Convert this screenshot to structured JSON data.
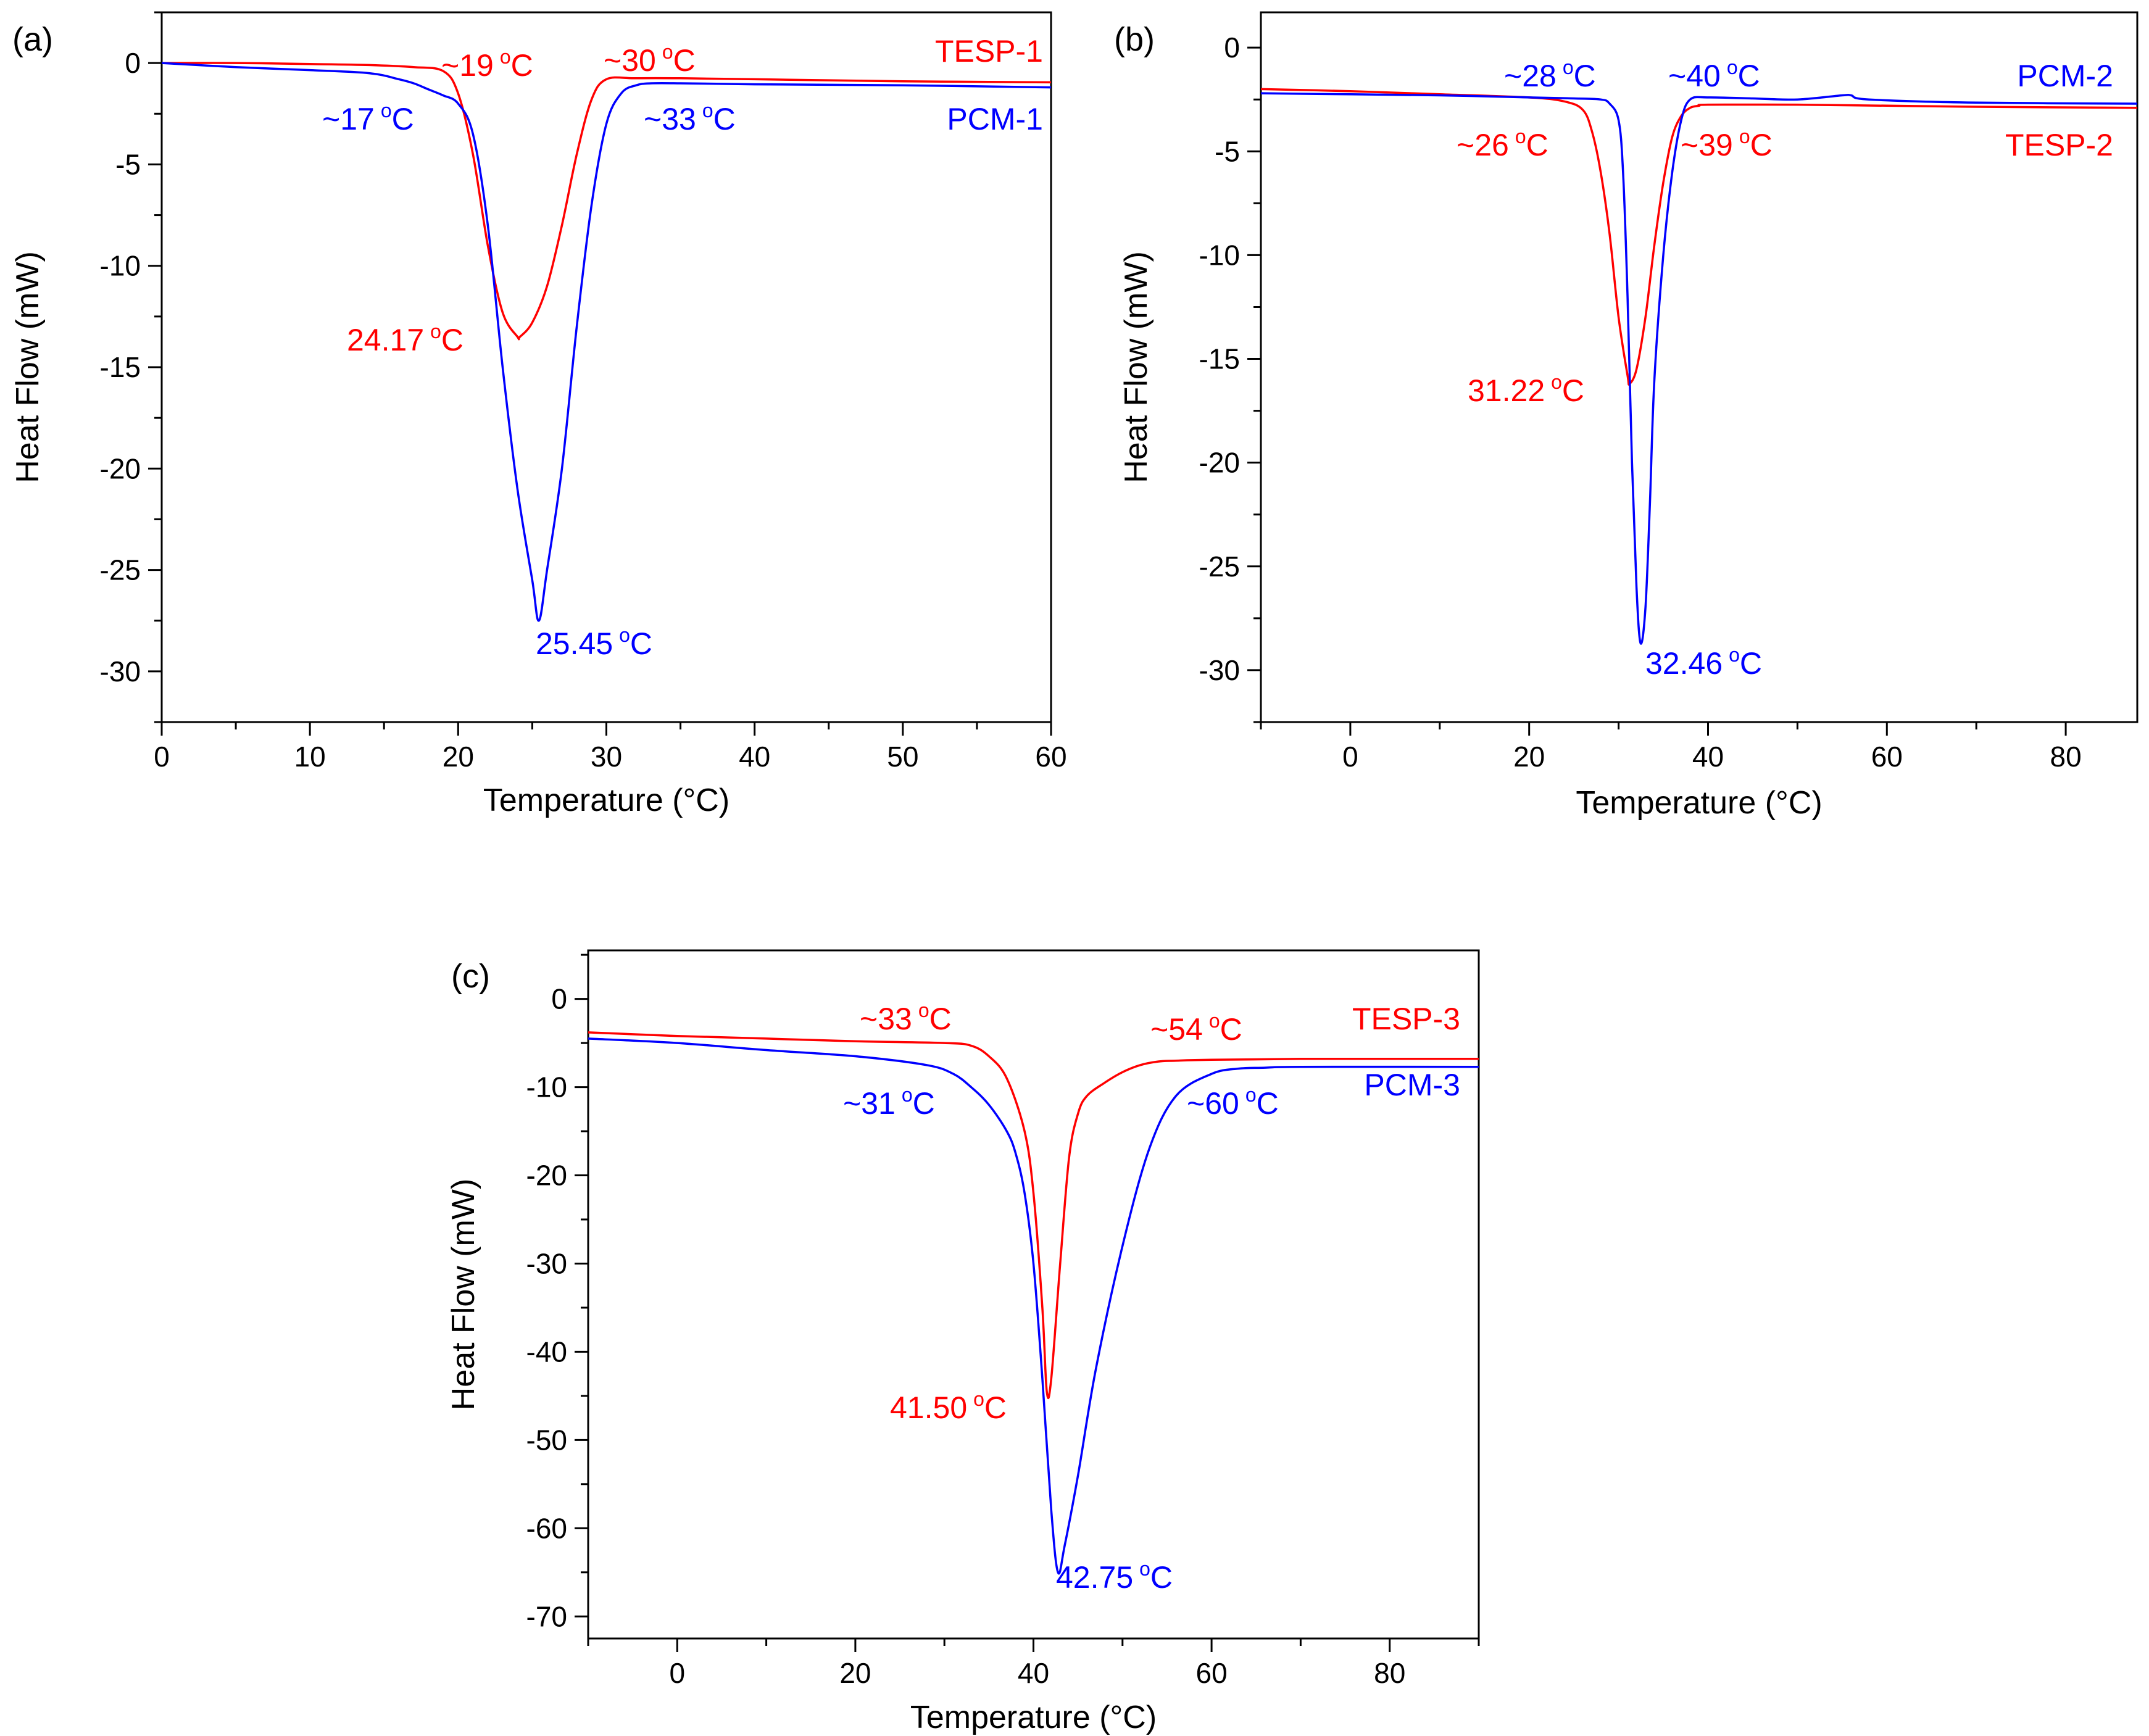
{
  "colors": {
    "red": "#ff0000",
    "blue": "#0000ff",
    "axis": "#000000"
  },
  "chart_data": [
    {
      "panel_label": "(a)",
      "type": "line",
      "xlabel": "Temperature (°C)",
      "ylabel": "Heat Flow (mW)",
      "xlim": [
        0,
        60
      ],
      "ylim": [
        -32.5,
        2.5
      ],
      "xticks": [
        0,
        10,
        20,
        30,
        40,
        50,
        60
      ],
      "yticks": [
        0,
        -5,
        -10,
        -15,
        -20,
        -25,
        -30
      ],
      "grid": false,
      "series": [
        {
          "name": "TESP-1",
          "color": "#ff0000",
          "x": [
            0,
            5,
            10,
            14,
            17,
            19,
            20,
            21,
            22,
            23,
            24,
            24.17,
            25,
            26,
            27,
            28,
            29,
            30,
            32,
            35,
            40,
            50,
            60
          ],
          "y": [
            0,
            0,
            -0.05,
            -0.1,
            -0.2,
            -0.4,
            -1.5,
            -4.5,
            -9,
            -12.3,
            -13.5,
            -13.5,
            -12.8,
            -11,
            -8,
            -4.5,
            -1.8,
            -0.8,
            -0.75,
            -0.75,
            -0.8,
            -0.9,
            -0.95
          ]
        },
        {
          "name": "PCM-1",
          "color": "#0000ff",
          "x": [
            0,
            5,
            10,
            14,
            16,
            17,
            18,
            19,
            20,
            21,
            22,
            23,
            24,
            25,
            25.45,
            26,
            27,
            28,
            29,
            30,
            31,
            32,
            33,
            35,
            40,
            50,
            60
          ],
          "y": [
            0,
            -0.2,
            -0.35,
            -0.5,
            -0.8,
            -1,
            -1.3,
            -1.6,
            -2,
            -3.5,
            -8,
            -15,
            -21,
            -25.5,
            -27.5,
            -25,
            -20,
            -13,
            -7,
            -3,
            -1.5,
            -1.1,
            -1,
            -1,
            -1.05,
            -1.1,
            -1.2
          ]
        }
      ],
      "annotations": [
        {
          "value": "~19",
          "sup": "o",
          "unit": "C",
          "color": "#ff0000"
        },
        {
          "value": "~30",
          "sup": "o",
          "unit": "C",
          "color": "#ff0000"
        },
        {
          "value": "~17",
          "sup": "o",
          "unit": "C",
          "color": "#0000ff"
        },
        {
          "value": "~33",
          "sup": "o",
          "unit": "C",
          "color": "#0000ff"
        },
        {
          "value": "24.17",
          "sup": "o",
          "unit": "C",
          "color": "#ff0000"
        },
        {
          "value": "25.45",
          "sup": "o",
          "unit": "C",
          "color": "#0000ff"
        }
      ],
      "legend": [
        {
          "text": "TESP-1",
          "color": "#ff0000"
        },
        {
          "text": "PCM-1",
          "color": "#0000ff"
        }
      ]
    },
    {
      "panel_label": "(b)",
      "type": "line",
      "xlabel": "Temperature (°C)",
      "ylabel": "Heat Flow (mW)",
      "xlim": [
        -10,
        88
      ],
      "ylim": [
        -32.5,
        1.7
      ],
      "xticks": [
        0,
        20,
        40,
        60,
        80
      ],
      "yticks": [
        0,
        -5,
        -10,
        -15,
        -20,
        -25,
        -30
      ],
      "grid": false,
      "series": [
        {
          "name": "TESP-2",
          "color": "#ff0000",
          "x": [
            -10,
            0,
            10,
            20,
            24,
            26,
            27,
            28,
            29,
            30,
            31,
            31.22,
            32,
            33,
            34,
            35,
            36,
            37,
            38,
            39,
            40,
            50,
            60,
            70,
            88
          ],
          "y": [
            -2,
            -2.1,
            -2.25,
            -2.4,
            -2.6,
            -3,
            -4,
            -6,
            -9,
            -13,
            -15.8,
            -16.2,
            -15.5,
            -13,
            -9.5,
            -6.5,
            -4.3,
            -3.3,
            -2.9,
            -2.8,
            -2.75,
            -2.75,
            -2.8,
            -2.85,
            -2.9
          ]
        },
        {
          "name": "PCM-2",
          "color": "#0000ff",
          "x": [
            -10,
            0,
            10,
            20,
            25,
            28,
            29,
            30,
            30.5,
            31,
            31.5,
            32,
            32.46,
            33,
            33.5,
            34,
            35,
            36,
            37,
            38,
            40,
            45,
            50,
            55,
            56,
            58,
            70,
            88
          ],
          "y": [
            -2.2,
            -2.25,
            -2.3,
            -2.4,
            -2.45,
            -2.5,
            -2.7,
            -3.5,
            -6,
            -12,
            -20,
            -26,
            -28.7,
            -27,
            -22,
            -16,
            -10,
            -6,
            -3.5,
            -2.5,
            -2.4,
            -2.45,
            -2.5,
            -2.3,
            -2.3,
            -2.5,
            -2.65,
            -2.7
          ]
        }
      ],
      "annotations": [
        {
          "value": "~28",
          "sup": "o",
          "unit": "C",
          "color": "#0000ff"
        },
        {
          "value": "~40",
          "sup": "o",
          "unit": "C",
          "color": "#0000ff"
        },
        {
          "value": "~26",
          "sup": "o",
          "unit": "C",
          "color": "#ff0000"
        },
        {
          "value": "~39",
          "sup": "o",
          "unit": "C",
          "color": "#ff0000"
        },
        {
          "value": "31.22",
          "sup": "o",
          "unit": "C",
          "color": "#ff0000"
        },
        {
          "value": "32.46",
          "sup": "o",
          "unit": "C",
          "color": "#0000ff"
        }
      ],
      "legend": [
        {
          "text": "PCM-2",
          "color": "#0000ff"
        },
        {
          "text": "TESP-2",
          "color": "#ff0000"
        }
      ]
    },
    {
      "panel_label": "(c)",
      "type": "line",
      "xlabel": "Temperature (°C)",
      "ylabel": "Heat Flow (mW)",
      "xlim": [
        -10,
        90
      ],
      "ylim": [
        -72.5,
        5.5
      ],
      "xticks": [
        0,
        20,
        40,
        60,
        80
      ],
      "yticks": [
        0,
        -10,
        -20,
        -30,
        -40,
        -50,
        -60,
        -70
      ],
      "grid": false,
      "series": [
        {
          "name": "TESP-3",
          "color": "#ff0000",
          "x": [
            -10,
            0,
            10,
            20,
            30,
            33,
            35,
            37,
            39,
            40,
            41,
            41.5,
            42,
            43,
            44,
            45,
            46,
            48,
            50,
            52,
            54,
            56,
            60,
            70,
            90
          ],
          "y": [
            -3.8,
            -4.2,
            -4.5,
            -4.8,
            -5,
            -5.3,
            -6.5,
            -9,
            -15,
            -22,
            -35,
            -44.5,
            -43,
            -30,
            -18,
            -13,
            -11,
            -9.5,
            -8.3,
            -7.5,
            -7.1,
            -7,
            -6.9,
            -6.8,
            -6.8
          ]
        },
        {
          "name": "PCM-3",
          "color": "#0000ff",
          "x": [
            -10,
            0,
            10,
            20,
            28,
            31,
            33,
            35,
            37,
            38,
            39,
            40,
            41,
            42,
            42.75,
            43.5,
            45,
            47,
            50,
            53,
            56,
            60,
            63,
            66,
            70,
            90
          ],
          "y": [
            -4.5,
            -5,
            -5.8,
            -6.5,
            -7.5,
            -8.5,
            -10,
            -12,
            -15,
            -17.5,
            -22,
            -30,
            -43,
            -58,
            -65,
            -62,
            -54,
            -42,
            -28,
            -17,
            -11,
            -8.5,
            -7.9,
            -7.8,
            -7.7,
            -7.7
          ]
        }
      ],
      "annotations": [
        {
          "value": "~33",
          "sup": "o",
          "unit": "C",
          "color": "#ff0000"
        },
        {
          "value": "~54",
          "sup": "o",
          "unit": "C",
          "color": "#ff0000"
        },
        {
          "value": "~31",
          "sup": "o",
          "unit": "C",
          "color": "#0000ff"
        },
        {
          "value": "~60",
          "sup": "o",
          "unit": "C",
          "color": "#0000ff"
        },
        {
          "value": "41.50",
          "sup": "o",
          "unit": "C",
          "color": "#ff0000"
        },
        {
          "value": "42.75",
          "sup": "o",
          "unit": "C",
          "color": "#0000ff"
        }
      ],
      "legend": [
        {
          "text": "TESP-3",
          "color": "#ff0000"
        },
        {
          "text": "PCM-3",
          "color": "#0000ff"
        }
      ]
    }
  ]
}
